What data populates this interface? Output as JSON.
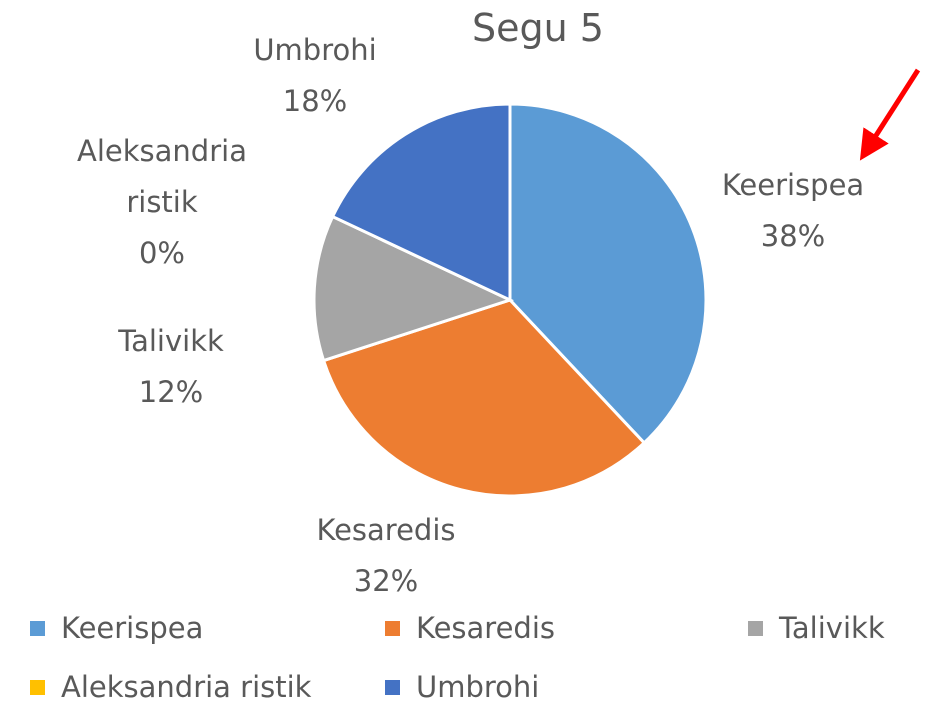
{
  "chart_data": {
    "type": "pie",
    "title": "Segu 5",
    "categories": [
      "Keerispea",
      "Kesaredis",
      "Talivikk",
      "Aleksandria ristik",
      "Umbrohi"
    ],
    "values": [
      38,
      32,
      12,
      0,
      18
    ],
    "value_labels": [
      "38%",
      "32%",
      "12%",
      "0%",
      "18%"
    ],
    "colors": [
      "#5b9bd5",
      "#ed7d31",
      "#a5a5a5",
      "#ffc000",
      "#4472c4"
    ],
    "legend": "bottom"
  }
}
